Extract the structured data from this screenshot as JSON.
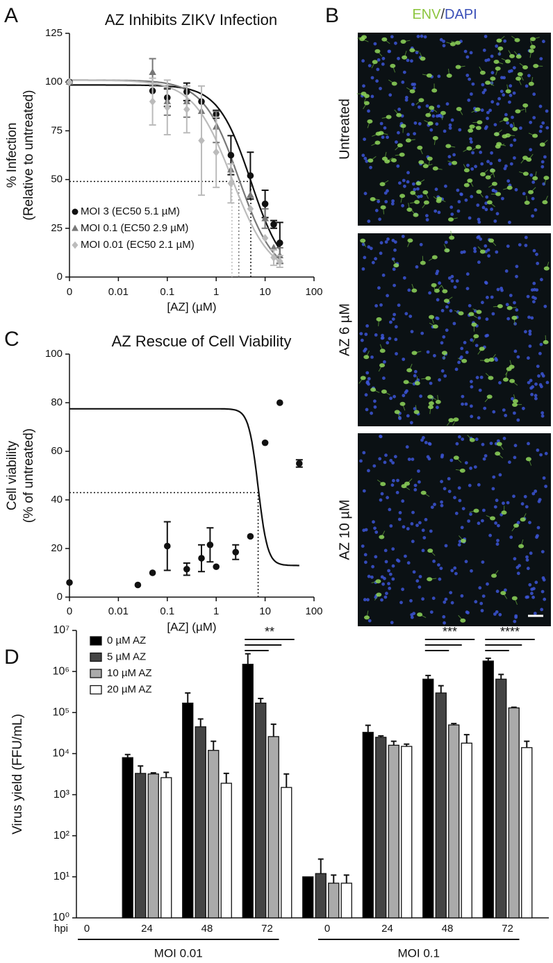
{
  "chart_data": [
    {
      "type": "line",
      "panel": "A",
      "title": "AZ Inhibits ZIKV Infection",
      "y_label": [
        "% Infection",
        "(Relative to untreated)"
      ],
      "x_label": "[AZ] (µM)",
      "log_x": true,
      "xlim": [
        0,
        100
      ],
      "xticks": [
        0,
        0.01,
        0.1,
        1,
        10,
        100
      ],
      "ylim": [
        0,
        125
      ],
      "yticks": [
        0,
        25,
        50,
        75,
        100,
        125
      ],
      "threshold": 49,
      "legend": "lower-left",
      "x": [
        0,
        0.05,
        0.1,
        0.25,
        0.5,
        1,
        2,
        5,
        10,
        15,
        20
      ],
      "series": [
        {
          "name": "MOI 3 (EC50 5.1 µM)",
          "color": "#111111",
          "marker": "circle",
          "values": [
            100,
            95.5,
            92,
            95,
            90,
            83.5,
            62.5,
            52,
            37.5,
            27,
            17.5
          ],
          "errors": [
            null,
            null,
            4.5,
            4.5,
            null,
            2,
            10,
            12,
            7,
            2,
            10.5
          ],
          "fit": {
            "top": 98.5,
            "bottom": 0,
            "ec50": 5.1,
            "hill": 1.3
          }
        },
        {
          "name": "MOI 0.1 (EC50 2.9 µM)",
          "color": "#777777",
          "marker": "triangle",
          "values": [
            100,
            105,
            90,
            90,
            85,
            77,
            55,
            42,
            30,
            15,
            11
          ],
          "errors": [
            null,
            7,
            7,
            8,
            null,
            8,
            null,
            null,
            5,
            null,
            4
          ],
          "fit": {
            "top": 101,
            "bottom": 0,
            "ec50": 2.9,
            "hill": 1.2
          }
        },
        {
          "name": "MOI 0.01 (EC50 2.1 µM)",
          "color": "#bbbbbb",
          "marker": "diamond",
          "values": [
            100,
            90,
            87,
            86,
            70,
            64,
            48,
            35,
            20,
            10,
            8
          ],
          "errors": [
            null,
            12,
            14,
            12,
            28,
            18,
            10,
            null,
            null,
            4,
            3
          ],
          "fit": {
            "top": 101,
            "bottom": 0,
            "ec50": 2.1,
            "hill": 1.1
          }
        }
      ]
    },
    {
      "type": "line",
      "panel": "C",
      "title": "AZ Rescue of Cell Viability",
      "y_label": [
        "Cell viability",
        "(% of untreated)"
      ],
      "x_label": "[AZ] (µM)",
      "log_x": true,
      "xlim": [
        0,
        100
      ],
      "xticks": [
        0,
        0.01,
        0.1,
        1,
        10,
        100
      ],
      "ylim": [
        0,
        100
      ],
      "yticks": [
        0,
        20,
        40,
        60,
        80,
        100
      ],
      "threshold": 43,
      "x": [
        0,
        0.025,
        0.05,
        0.1,
        0.25,
        0.5,
        0.75,
        1,
        2.5,
        5,
        10,
        20,
        50
      ],
      "series": [
        {
          "color": "#111111",
          "marker": "circle",
          "values": [
            6,
            5,
            10,
            21,
            11.5,
            16,
            21.5,
            12.5,
            18.5,
            25,
            63.5,
            80,
            55
          ],
          "errors": [
            null,
            null,
            null,
            10,
            2.5,
            5.5,
            7,
            null,
            3,
            null,
            null,
            null,
            1.5
          ],
          "fit": {
            "top": 77.5,
            "bottom": 13,
            "ec50": 7.2,
            "hill": 4.5
          }
        }
      ]
    },
    {
      "type": "bar",
      "panel": "D",
      "y_label": "Virus yield (FFU/mL)",
      "x_label": "hpi",
      "log_y": true,
      "ylim": [
        1,
        10000000
      ],
      "yticks": [
        {
          "value": 1,
          "label": "10⁰"
        },
        {
          "value": 10,
          "label": "10¹"
        },
        {
          "value": 100,
          "label": "10²"
        },
        {
          "value": 1000,
          "label": "10³"
        },
        {
          "value": 10000,
          "label": "10⁴"
        },
        {
          "value": 100000,
          "label": "10⁵"
        },
        {
          "value": 1000000,
          "label": "10⁶"
        },
        {
          "value": 10000000,
          "label": "10⁷"
        }
      ],
      "categories": [
        "0",
        "24",
        "48",
        "72",
        "0",
        "24",
        "48",
        "72"
      ],
      "groups": [
        "MOI 0.01",
        "MOI 0.1"
      ],
      "annotations": [
        "**",
        "***",
        "****"
      ],
      "legend": "upper-left",
      "series": [
        {
          "name": "0 µM AZ",
          "color": "#000000",
          "values": [
            null,
            8000,
            170000,
            1500000,
            10,
            33000,
            650000,
            1800000
          ],
          "errors": [
            null,
            1500,
            130000,
            1200000,
            null,
            16000,
            150000,
            300000
          ]
        },
        {
          "name": "5 µM AZ",
          "color": "#444444",
          "values": [
            null,
            3300,
            45000,
            170000,
            12,
            25000,
            300000,
            650000
          ],
          "errors": [
            null,
            1700,
            25000,
            50000,
            15,
            2000,
            150000,
            200000
          ]
        },
        {
          "name": "10 µM AZ",
          "color": "#aaaaaa",
          "values": [
            null,
            3200,
            12000,
            26000,
            7,
            16000,
            50000,
            130000
          ],
          "errors": [
            null,
            200,
            8000,
            26000,
            4,
            4000,
            4000,
            5000
          ]
        },
        {
          "name": "20 µM AZ",
          "color": "#ffffff",
          "values": [
            null,
            2600,
            1900,
            1500,
            7,
            15000,
            18000,
            14000
          ],
          "errors": [
            null,
            900,
            1400,
            1700,
            4,
            2000,
            11000,
            6000
          ]
        }
      ]
    }
  ],
  "micrographs": {
    "panel": "B",
    "title": [
      "ENV",
      "/",
      "DAPI"
    ],
    "title_colors": [
      "#8cc63f",
      "#333333",
      "#3a4fb8"
    ],
    "rows": [
      "Untreated",
      "AZ 6 µM",
      "AZ 10 µM"
    ]
  }
}
